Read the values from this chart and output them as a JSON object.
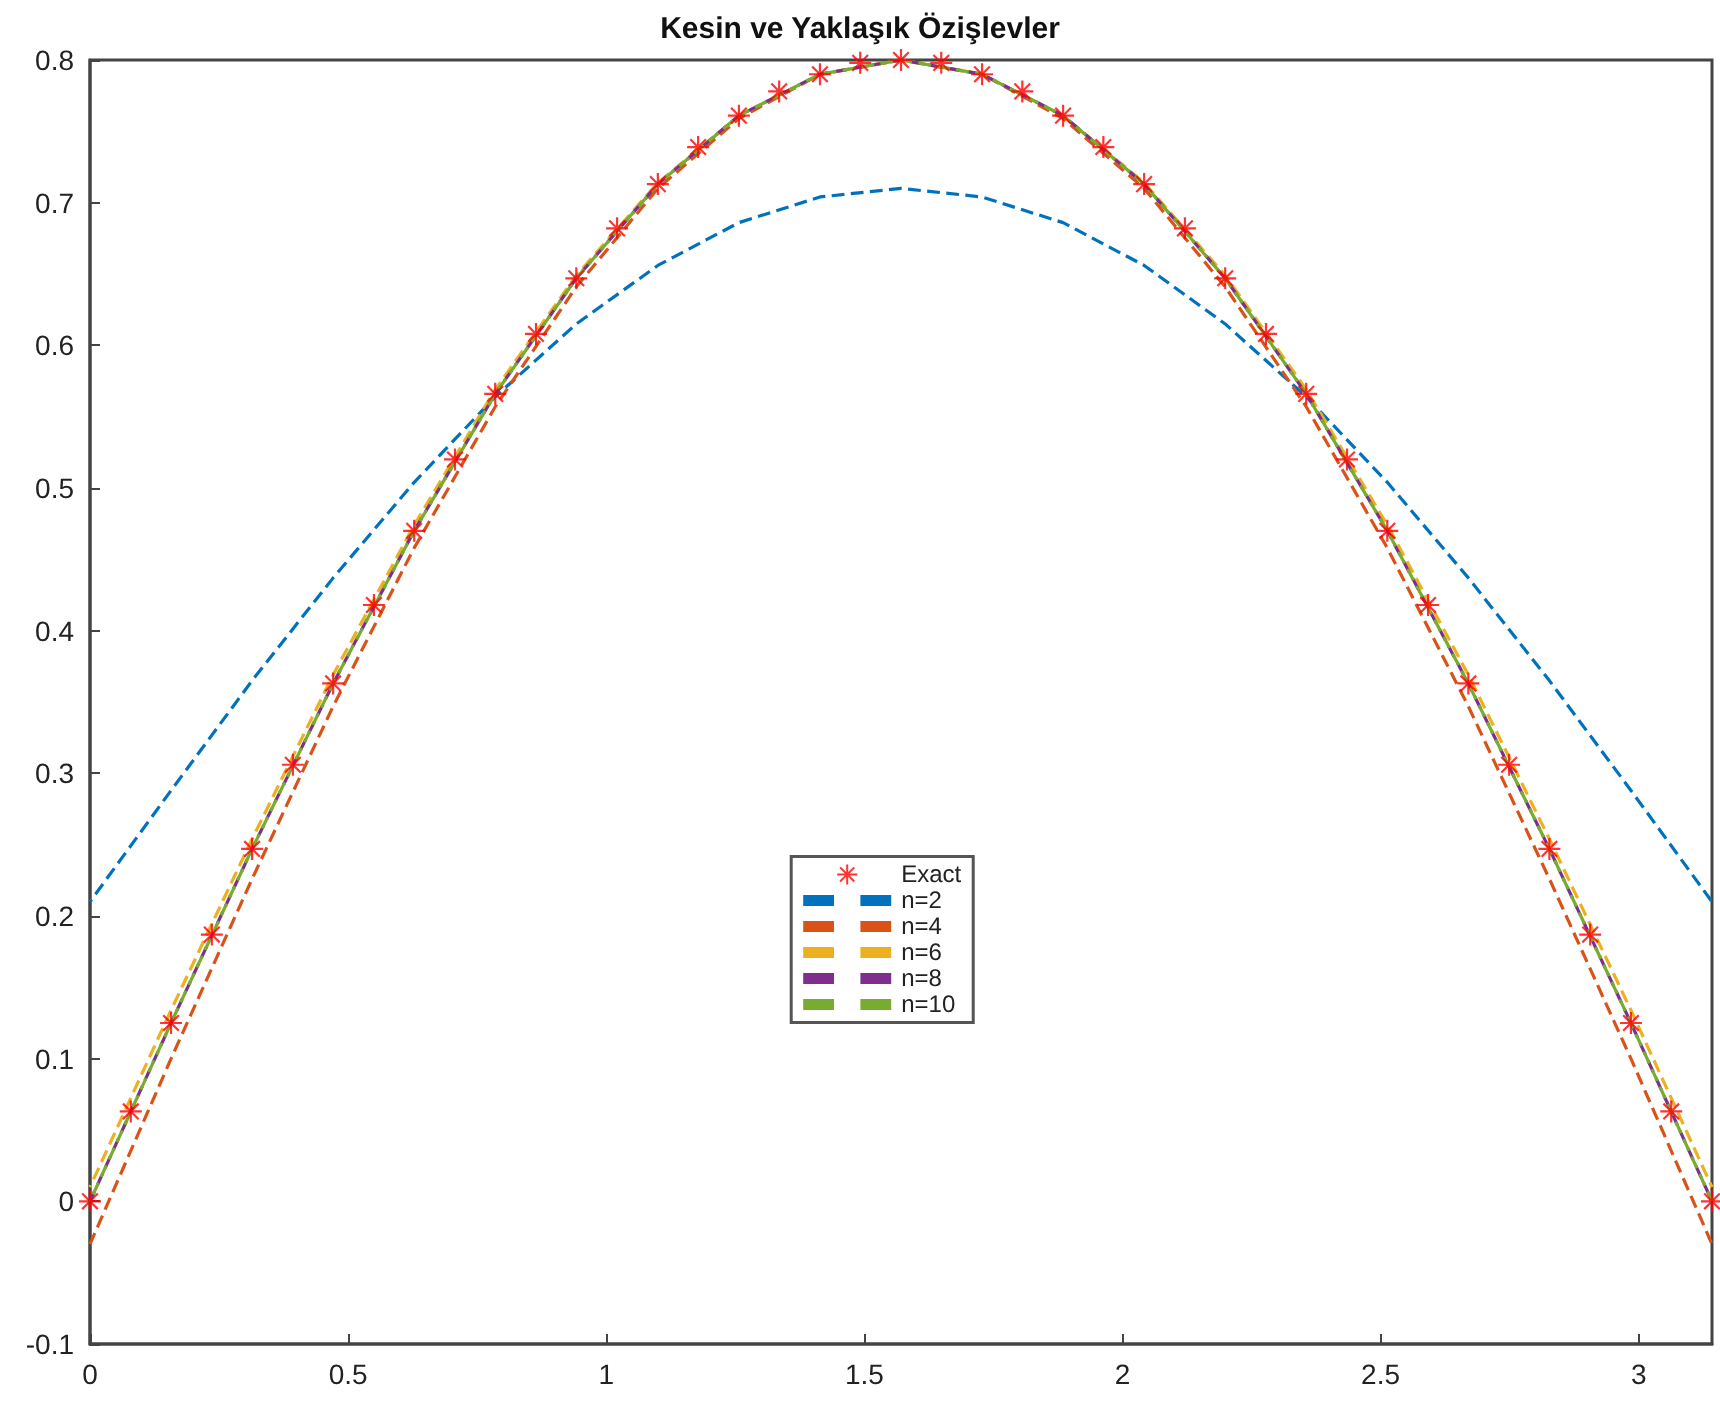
{
  "chart_data": {
    "type": "line",
    "title": "Kesin ve Yaklaşık Özişlevler",
    "xlim": [
      0,
      3.142
    ],
    "xticks": [
      0,
      0.5,
      1,
      1.5,
      2,
      2.5,
      3
    ],
    "ylim": [
      -0.1,
      0.8
    ],
    "yticks": [
      -0.1,
      0,
      0.1,
      0.2,
      0.3,
      0.4,
      0.5,
      0.6,
      0.7,
      0.8
    ],
    "grid": false,
    "legend": "center",
    "series": [
      {
        "name": "Exact",
        "type": "scatter",
        "marker": "star",
        "color": "#ff0000",
        "x": [
          0,
          0.079,
          0.157,
          0.236,
          0.314,
          0.393,
          0.471,
          0.55,
          0.628,
          0.707,
          0.785,
          0.864,
          0.942,
          1.021,
          1.1,
          1.178,
          1.257,
          1.335,
          1.414,
          1.492,
          1.571,
          1.649,
          1.728,
          1.806,
          1.885,
          1.963,
          2.042,
          2.121,
          2.199,
          2.278,
          2.356,
          2.435,
          2.513,
          2.592,
          2.67,
          2.749,
          2.827,
          2.906,
          2.985,
          3.063,
          3.142
        ],
        "values": [
          0,
          0.063,
          0.125,
          0.187,
          0.247,
          0.306,
          0.363,
          0.418,
          0.47,
          0.52,
          0.566,
          0.608,
          0.647,
          0.682,
          0.713,
          0.739,
          0.761,
          0.778,
          0.79,
          0.798,
          0.8,
          0.798,
          0.79,
          0.778,
          0.761,
          0.739,
          0.713,
          0.682,
          0.647,
          0.608,
          0.566,
          0.52,
          0.47,
          0.418,
          0.363,
          0.306,
          0.247,
          0.187,
          0.125,
          0.063,
          0
        ]
      },
      {
        "name": "n=2",
        "type": "line",
        "line_style": "dashed",
        "color": "#0072bd",
        "x": [
          0,
          0.157,
          0.314,
          0.471,
          0.628,
          0.785,
          0.942,
          1.1,
          1.257,
          1.414,
          1.571,
          1.728,
          1.885,
          2.042,
          2.199,
          2.356,
          2.513,
          2.67,
          2.827,
          2.985,
          3.142
        ],
        "values": [
          0.21,
          0.288,
          0.365,
          0.437,
          0.504,
          0.564,
          0.615,
          0.656,
          0.686,
          0.704,
          0.71,
          0.704,
          0.686,
          0.656,
          0.615,
          0.564,
          0.504,
          0.437,
          0.365,
          0.288,
          0.21
        ]
      },
      {
        "name": "n=4",
        "type": "line",
        "line_style": "dashed",
        "color": "#d95319",
        "x": [
          0,
          0.157,
          0.314,
          0.471,
          0.628,
          0.785,
          0.942,
          1.1,
          1.257,
          1.414,
          1.571,
          1.728,
          1.885,
          2.042,
          2.199,
          2.356,
          2.513,
          2.67,
          2.827,
          2.985,
          3.142
        ],
        "values": [
          -0.03,
          0.1,
          0.226,
          0.347,
          0.458,
          0.557,
          0.641,
          0.71,
          0.759,
          0.79,
          0.8,
          0.79,
          0.759,
          0.71,
          0.641,
          0.557,
          0.458,
          0.347,
          0.226,
          0.1,
          -0.03
        ]
      },
      {
        "name": "n=6",
        "type": "line",
        "line_style": "dashed",
        "color": "#edb120",
        "x": [
          0,
          0.157,
          0.314,
          0.471,
          0.628,
          0.785,
          0.942,
          1.1,
          1.257,
          1.414,
          1.571,
          1.728,
          1.885,
          2.042,
          2.199,
          2.356,
          2.513,
          2.67,
          2.827,
          2.985,
          3.142
        ],
        "values": [
          0.01,
          0.134,
          0.254,
          0.369,
          0.474,
          0.569,
          0.649,
          0.714,
          0.761,
          0.79,
          0.8,
          0.79,
          0.761,
          0.714,
          0.649,
          0.569,
          0.474,
          0.369,
          0.254,
          0.134,
          0.01
        ]
      },
      {
        "name": "n=8",
        "type": "line",
        "line_style": "dashed",
        "color": "#7e2f8e",
        "x": [
          0,
          0.157,
          0.314,
          0.471,
          0.628,
          0.785,
          0.942,
          1.1,
          1.257,
          1.414,
          1.571,
          1.728,
          1.885,
          2.042,
          2.199,
          2.356,
          2.513,
          2.67,
          2.827,
          2.985,
          3.142
        ],
        "values": [
          0,
          0.125,
          0.247,
          0.363,
          0.47,
          0.566,
          0.647,
          0.713,
          0.761,
          0.79,
          0.8,
          0.79,
          0.761,
          0.713,
          0.647,
          0.566,
          0.47,
          0.363,
          0.247,
          0.125,
          0
        ]
      },
      {
        "name": "n=10",
        "type": "line",
        "line_style": "dashed",
        "color": "#77ac30",
        "x": [
          0,
          0.157,
          0.314,
          0.471,
          0.628,
          0.785,
          0.942,
          1.1,
          1.257,
          1.414,
          1.571,
          1.728,
          1.885,
          2.042,
          2.199,
          2.356,
          2.513,
          2.67,
          2.827,
          2.985,
          3.142
        ],
        "values": [
          0,
          0.125,
          0.247,
          0.363,
          0.47,
          0.566,
          0.647,
          0.713,
          0.761,
          0.79,
          0.8,
          0.79,
          0.761,
          0.713,
          0.647,
          0.566,
          0.47,
          0.363,
          0.247,
          0.125,
          0
        ]
      }
    ]
  }
}
